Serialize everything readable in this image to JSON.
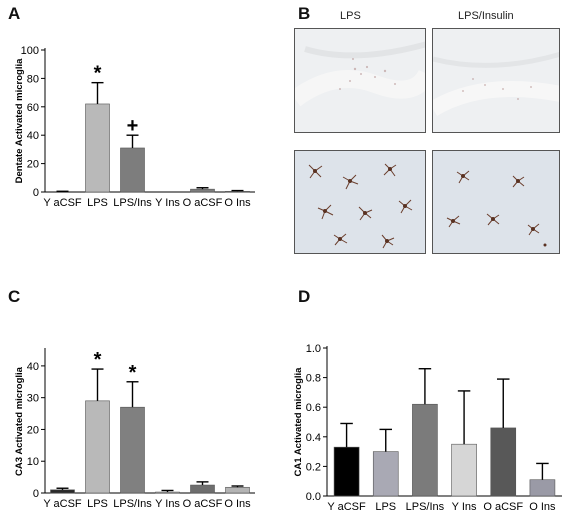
{
  "panels": {
    "a": "A",
    "b": "B",
    "c": "C",
    "d": "D"
  },
  "micrographs": {
    "col1_title": "LPS",
    "col2_title": "LPS/Insulin"
  },
  "chart_data": [
    {
      "type": "bar",
      "panel": "A",
      "categories": [
        "Y aCSF",
        "LPS",
        "LPS/Ins",
        "Y Ins",
        "O aCSF",
        "O Ins"
      ],
      "values": [
        0,
        62,
        31,
        0,
        2,
        0.5
      ],
      "errors": [
        0.5,
        15,
        9,
        0,
        1,
        0.5
      ],
      "annotations": [
        "",
        "*",
        "+",
        "",
        "",
        ""
      ],
      "colors": [
        "#8a8a8a",
        "#b9b9b9",
        "#7d7d7d",
        "#cfcfcf",
        "#7d7d7d",
        "#b4b4b4"
      ],
      "ylabel": "Dentate Activated microglia",
      "ylim": [
        0,
        100
      ],
      "yticks": [
        0,
        20,
        40,
        60,
        80,
        100
      ]
    },
    {
      "type": "bar",
      "panel": "C",
      "categories": [
        "Y aCSF",
        "LPS",
        "LPS/Ins",
        "Y Ins",
        "O aCSF",
        "O Ins"
      ],
      "values": [
        1,
        29,
        27,
        0.3,
        2.5,
        1.8
      ],
      "errors": [
        0.5,
        10,
        8,
        0.5,
        1,
        0.4
      ],
      "annotations": [
        "",
        "*",
        "*",
        "",
        "",
        ""
      ],
      "colors": [
        "#2a2a2a",
        "#b9b9b9",
        "#808080",
        "#cfcfcf",
        "#6e6e6e",
        "#b4b4b4"
      ],
      "ylabel": "CA3 Activated microglia",
      "ylim": [
        0,
        45
      ],
      "yticks": [
        0,
        10,
        20,
        30,
        40
      ]
    },
    {
      "type": "bar",
      "panel": "D",
      "categories": [
        "Y aCSF",
        "LPS",
        "LPS/Ins",
        "Y Ins",
        "O aCSF",
        "O Ins"
      ],
      "values": [
        0.33,
        0.3,
        0.62,
        0.35,
        0.46,
        0.11
      ],
      "errors": [
        0.16,
        0.15,
        0.24,
        0.36,
        0.33,
        0.11
      ],
      "annotations": [
        "",
        "",
        "",
        "",
        "",
        ""
      ],
      "colors": [
        "#000000",
        "#a9a9b4",
        "#7b7b7b",
        "#d6d6d6",
        "#585858",
        "#9a9aa6"
      ],
      "ylabel": "CA1 Activated microglia",
      "ylim": [
        0,
        1.0
      ],
      "yticks": [
        "0.0",
        "0.2",
        "0.4",
        "0.6",
        "0.8",
        "1.0"
      ]
    }
  ]
}
